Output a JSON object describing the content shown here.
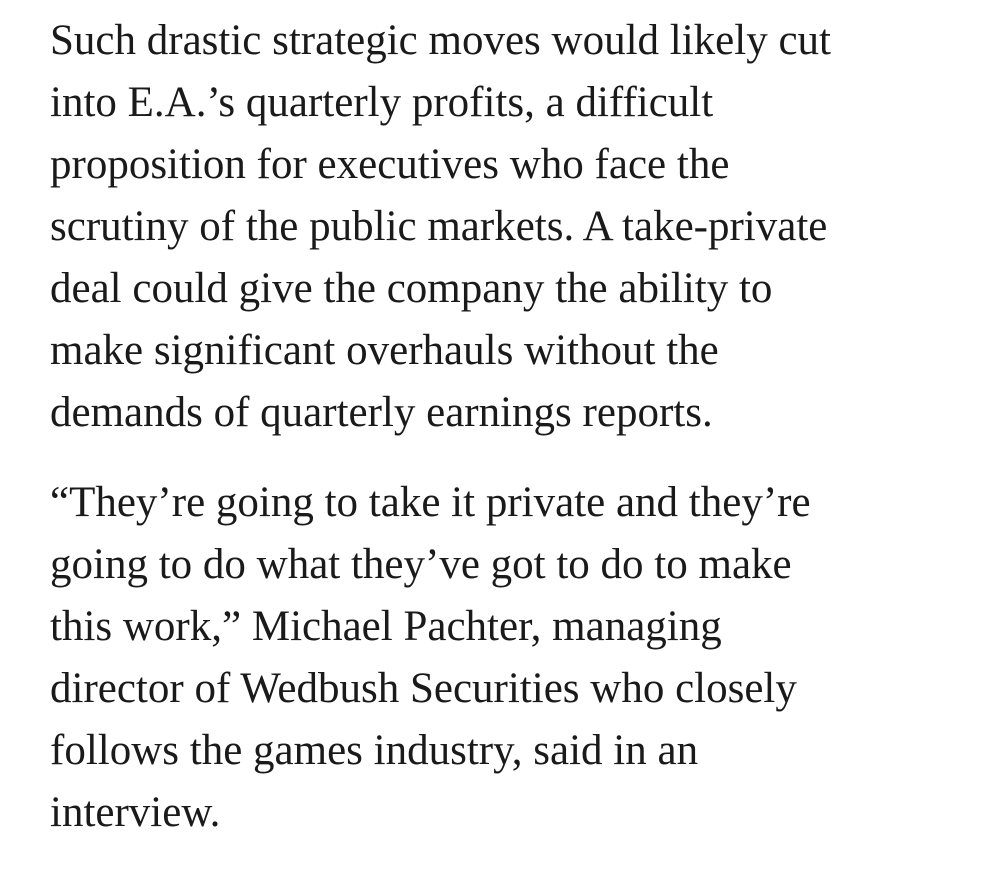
{
  "article": {
    "paragraphs": [
      {
        "lines": [
          "Such drastic strategic moves would likely cut",
          "into E.A.’s quarterly profits, a difficult",
          "proposition for executives who face the",
          "scrutiny of the public markets. A take-private",
          "deal could give the company the ability to",
          "make significant overhauls without the",
          "demands of quarterly earnings reports."
        ]
      },
      {
        "lines": [
          "“They’re going to take it private and they’re",
          "going to do what they’ve got to do to make",
          "this work,” Michael Pachter, managing",
          "director of Wedbush Securities who closely",
          "follows the games industry, said in an",
          "interview."
        ]
      }
    ]
  }
}
